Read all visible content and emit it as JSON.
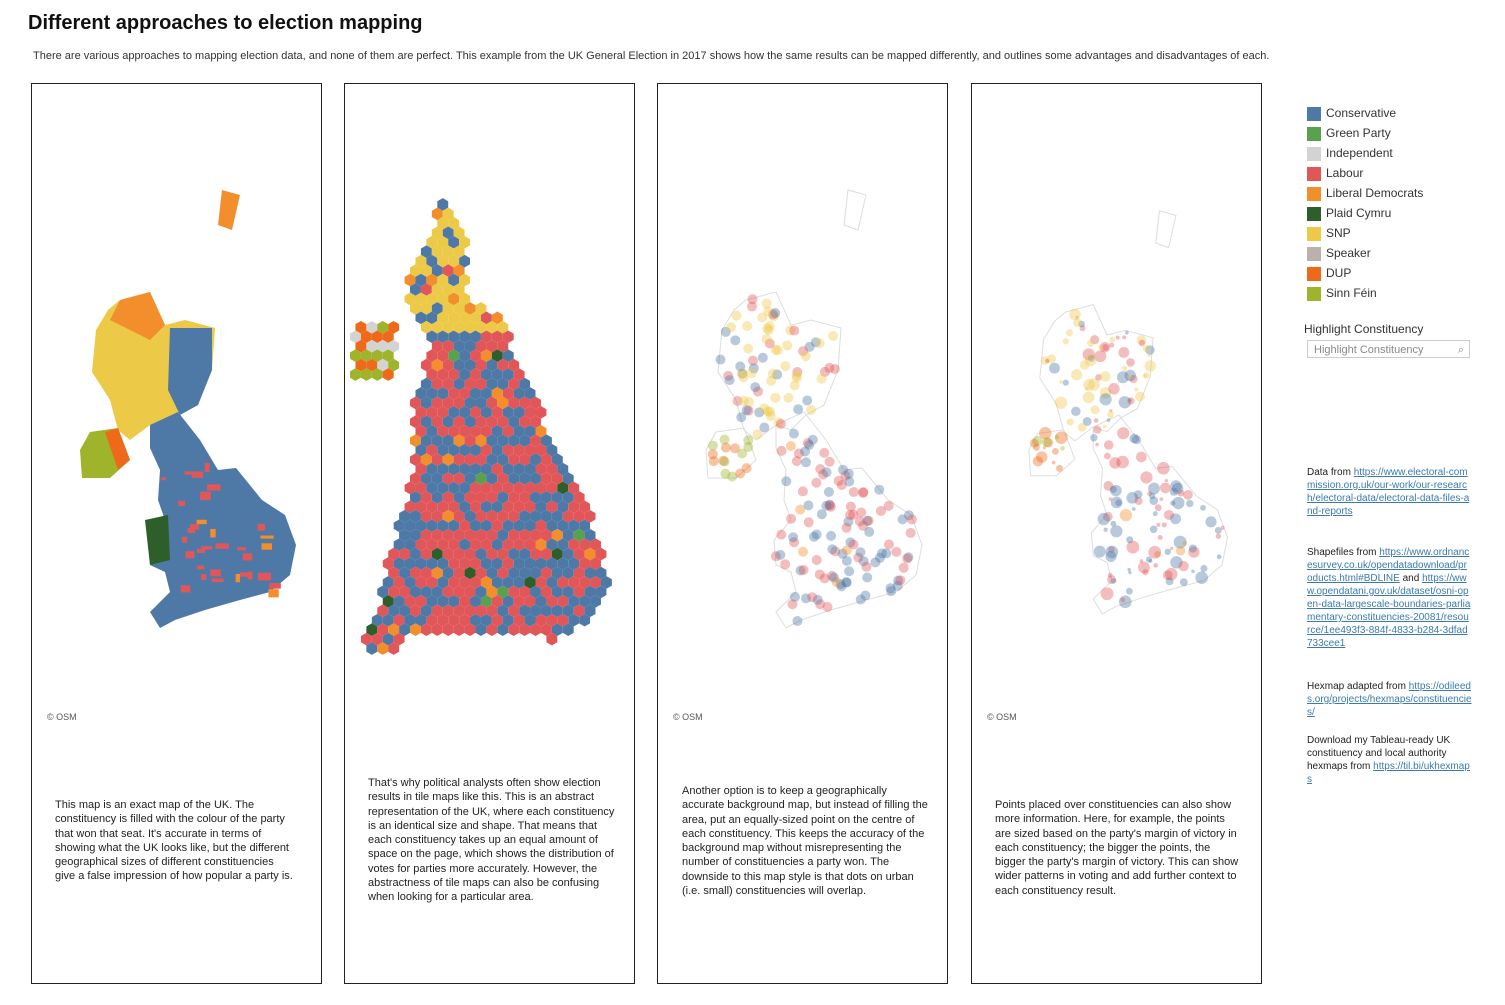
{
  "header": {
    "title": "Different approaches to election mapping",
    "subtitle": "There are various approaches to mapping election data, and none of them are perfect. This example from the UK General Election in 2017 shows how the same results can be mapped differently, and outlines some advantages and disadvantages of each."
  },
  "panels": [
    {
      "text": "This map is an exact map of the UK. The constituency is filled with the colour of the party that won that seat. It's accurate in terms of showing what the UK looks like, but the different geographical sizes of different constituencies give a false impression of how popular a party is.",
      "credit": "© OSM"
    },
    {
      "text": "That's why political analysts often show election results in tile maps like this. This is an abstract representation of the UK, where each constituency is an identical size and shape. That means that each constituency takes up an equal amount of space on the page, which shows the distribution of votes for parties more accurately. However, the abstractness of tile maps can also be confusing when looking for a particular area."
    },
    {
      "text": "Another option is to keep a geographically accurate background map, but instead of filling the area, put an equally-sized point on the centre of each constituency. This keeps the accuracy of the background map without misrepresenting the number of constituencies a party won. The downside to this map style is that dots on urban (i.e. small) constituencies will overlap.",
      "credit": "© OSM"
    },
    {
      "text": "Points placed over constituencies can also show more information. Here, for example, the points are sized based on the party's margin of victory in each constituency; the bigger the points, the bigger the party's margin of victory. This can show wider patterns in voting and add further context to each constituency result.",
      "credit": "© OSM"
    }
  ],
  "legend": [
    {
      "name": "Conservative",
      "color": "#4e79a7"
    },
    {
      "name": "Green Party",
      "color": "#59a14f"
    },
    {
      "name": "Independent",
      "color": "#d3d3d3"
    },
    {
      "name": "Labour",
      "color": "#e15759"
    },
    {
      "name": "Liberal Democrats",
      "color": "#f28e2b"
    },
    {
      "name": "Plaid Cymru",
      "color": "#2e5e2a"
    },
    {
      "name": "SNP",
      "color": "#edc948"
    },
    {
      "name": "Speaker",
      "color": "#bab0ac"
    },
    {
      "name": "DUP",
      "color": "#ee6a1a"
    },
    {
      "name": "Sinn Féin",
      "color": "#9fb42b"
    }
  ],
  "highlight": {
    "label": "Highlight Constituency",
    "placeholder": "Highlight Constituency"
  },
  "notes": [
    {
      "text": "Data from ",
      "link": "https://www.electoral-commission.org.uk/our-work/our-research/electoral-data/electoral-data-files-and-reports"
    },
    {
      "text": "Shapefiles from ",
      "link": "https://www.ordnancesurvey.co.uk/opendatadownload/products.html#BDLINE",
      "text2": " and ",
      "link2": "https://www.opendatani.gov.uk/dataset/osni-open-data-largescale-boundaries-parliamentary-constituencies-20081/resource/1ee493f3-884f-4833-b284-3dfad733cee1"
    },
    {
      "text": "Hexmap adapted from ",
      "link": "https://odileeds.org/projects/hexmaps/constituencies/"
    },
    {
      "text": "Download my Tableau-ready UK constituency and local authority hexmaps from ",
      "link": "https://til.bi/ukhexmaps"
    }
  ]
}
